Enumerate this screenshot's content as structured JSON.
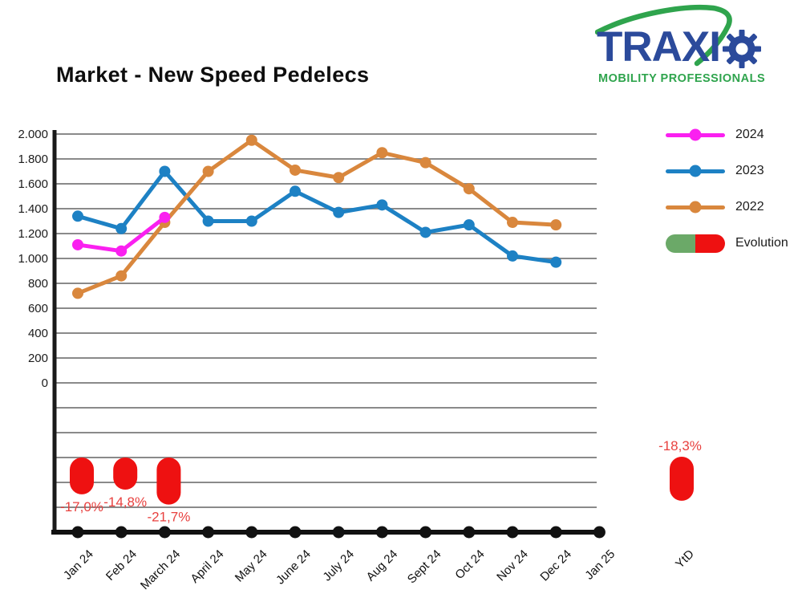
{
  "title": "Market - New Speed Pedelecs",
  "logo": {
    "brand_text": "TRAXI",
    "tagline": "MOBILITY PROFESSIONALS",
    "blue": "#2b4a9b",
    "green": "#2fa44d"
  },
  "legend": {
    "items": [
      {
        "label": "2024",
        "type": "line",
        "color": "#fa20f0"
      },
      {
        "label": "2023",
        "type": "line",
        "color": "#1d81c4"
      },
      {
        "label": "2022",
        "type": "line",
        "color": "#d9873d"
      },
      {
        "label": "Evolution",
        "type": "pill",
        "colors": [
          "#6ba968",
          "#ee1111"
        ]
      }
    ]
  },
  "chart_data": {
    "type": "line",
    "title": "Market - New Speed Pedelecs",
    "x_labels": [
      "Jan 24",
      "Feb 24",
      "March 24",
      "April 24",
      "May 24",
      "June 24",
      "July 24",
      "Aug 24",
      "Sept 24",
      "Oct 24",
      "Nov 24",
      "Dec 24",
      "Jan 25"
    ],
    "y_ticks": [
      "2.000",
      "1.800",
      "1.600",
      "1.400",
      "1.200",
      "1.000",
      "800",
      "600",
      "400",
      "200",
      "0"
    ],
    "ylim": [
      0,
      2000
    ],
    "grid": true,
    "legend_position": "right",
    "series": [
      {
        "name": "2024",
        "color": "#fa20f0",
        "values": [
          1110,
          1060,
          1330
        ]
      },
      {
        "name": "2023",
        "color": "#1d81c4",
        "values": [
          1340,
          1240,
          1700,
          1300,
          1300,
          1540,
          1370,
          1430,
          1210,
          1270,
          1020,
          970
        ]
      },
      {
        "name": "2022",
        "color": "#d9873d",
        "values": [
          720,
          860,
          1290,
          1700,
          1950,
          1710,
          1650,
          1850,
          1770,
          1560,
          1290,
          1270
        ]
      }
    ],
    "evolution": {
      "monthly": [
        {
          "x_index": 0,
          "label": "-17,0%",
          "value": -17.0
        },
        {
          "x_index": 1,
          "label": "-14,8%",
          "value": -14.8
        },
        {
          "x_index": 2,
          "label": "-21,7%",
          "value": -21.7
        }
      ],
      "ytd": {
        "x_label": "YtD",
        "label": "-18,3%",
        "value": -18.3
      },
      "pill_color": "#ee1111",
      "label_color": "#e8413f"
    }
  }
}
